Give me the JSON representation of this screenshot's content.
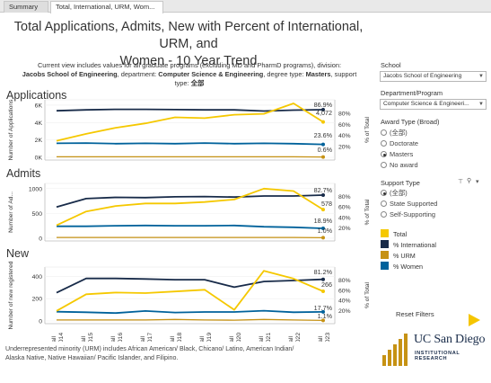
{
  "tabs": [
    {
      "label": "Summary"
    },
    {
      "label": "Total, International, URM, Wom..."
    }
  ],
  "title_line1": "Total Applications, Admits, New with Percent of International, URM, and",
  "title_line2": "Women - 10 Year Trend",
  "description": {
    "line1": "Current view includes values for all graduate programs (excluding MD and PharmD programs), division:",
    "division": "Jacobs School of Engineering",
    "dept_prefix": ", department: ",
    "department": "Computer Science & Engineering",
    "degree_prefix": ", degree type: ",
    "degree": "Masters",
    "support_prefix": ", support",
    "line3_prefix": "type: ",
    "support": "全部"
  },
  "filters": {
    "school_label": "School",
    "school_value": "Jacobs School of Engineering",
    "dept_label": "Department/Program",
    "dept_value": "Computer Science & Engineeri...",
    "award_label": "Award Type (Broad)",
    "award_options": [
      "(全部)",
      "Doctorate",
      "Masters",
      "No award"
    ],
    "award_selected": 2,
    "support_label": "Support Type",
    "support_options": [
      "(全部)",
      "State Supported",
      "Self-Supporting"
    ],
    "support_selected": 0
  },
  "legend": [
    {
      "label": "Total",
      "color": "#f5c800"
    },
    {
      "label": "% International",
      "color": "#182b49"
    },
    {
      "label": "% URM",
      "color": "#c69214"
    },
    {
      "label": "% Women",
      "color": "#00629b"
    }
  ],
  "reset_label": "Reset Filters",
  "footnote": "Underrepresented minority (URM) includes African American/ Black, Chicano/ Latino, American Indian/ Alaska Native, Native Hawaiian/ Pacific Islander, and Filipino.",
  "logo": {
    "line1": "UC San Diego",
    "line2": "INSTITUTIONAL RESEARCH"
  },
  "chart_data": [
    {
      "type": "line",
      "section": "Applications",
      "ylabel": "Number of Applications",
      "y2label": "% of Total",
      "left_ticks": [
        "6K",
        "4K",
        "2K",
        "0K"
      ],
      "left_tick_values": [
        6000,
        4000,
        2000,
        0
      ],
      "ylim": [
        0,
        6300
      ],
      "right_ticks": [
        "80%",
        "60%",
        "40%",
        "20%"
      ],
      "right_tick_values": [
        80,
        60,
        40,
        20
      ],
      "y2lim": [
        0,
        100
      ],
      "x": [
        "Fall 2014",
        "Fall 2015",
        "Fall 2016",
        "Fall 2017",
        "Fall 2018",
        "Fall 2019",
        "Fall 2020",
        "Fall 2021",
        "Fall 2022",
        "Fall 2023"
      ],
      "series": [
        {
          "name": "Total",
          "axis": "left",
          "values": [
            1900,
            2700,
            3400,
            3900,
            4600,
            4500,
            4900,
            5000,
            6200,
            4072
          ]
        },
        {
          "name": "% International",
          "axis": "right",
          "values": [
            85.0,
            86.5,
            87.5,
            87.5,
            87.0,
            86.5,
            86.5,
            84.5,
            86.0,
            86.9
          ]
        },
        {
          "name": "% URM",
          "axis": "right",
          "values": [
            1.0,
            1.0,
            1.0,
            1.0,
            1.0,
            1.0,
            1.0,
            1.0,
            1.0,
            0.6
          ]
        },
        {
          "name": "% Women",
          "axis": "right",
          "values": [
            25.5,
            26.0,
            25.0,
            25.5,
            25.0,
            26.0,
            25.0,
            25.5,
            25.0,
            23.6
          ]
        }
      ],
      "end_labels": [
        "86.9%",
        "4,072",
        "23.6%",
        "0.6%"
      ]
    },
    {
      "type": "line",
      "section": "Admits",
      "ylabel": "Number of Ad...",
      "y2label": "% of Total",
      "left_ticks": [
        "1000",
        "500",
        "0"
      ],
      "left_tick_values": [
        1000,
        500,
        0
      ],
      "ylim": [
        0,
        1050
      ],
      "right_ticks": [
        "80%",
        "60%",
        "40%",
        "20%"
      ],
      "right_tick_values": [
        80,
        60,
        40,
        20
      ],
      "y2lim": [
        0,
        100
      ],
      "x": [
        "Fall 2014",
        "Fall 2015",
        "Fall 2016",
        "Fall 2017",
        "Fall 2018",
        "Fall 2019",
        "Fall 2020",
        "Fall 2021",
        "Fall 2022",
        "Fall 2023"
      ],
      "series": [
        {
          "name": "Total",
          "axis": "left",
          "values": [
            260,
            540,
            650,
            700,
            700,
            730,
            780,
            1000,
            950,
            578
          ]
        },
        {
          "name": "% International",
          "axis": "right",
          "values": [
            60.0,
            76.0,
            78.5,
            78.0,
            79.5,
            80.0,
            79.0,
            81.0,
            81.0,
            82.7
          ]
        },
        {
          "name": "% URM",
          "axis": "right",
          "values": [
            1.5,
            1.5,
            1.5,
            1.5,
            1.5,
            1.5,
            1.5,
            1.5,
            1.5,
            1.0
          ]
        },
        {
          "name": "% Women",
          "axis": "right",
          "values": [
            23.0,
            23.0,
            24.0,
            24.5,
            24.0,
            24.0,
            24.5,
            22.0,
            21.0,
            18.9
          ]
        }
      ],
      "end_labels": [
        "82.7%",
        "578",
        "18.9%",
        "1.0%"
      ]
    },
    {
      "type": "line",
      "section": "New",
      "ylabel": "Number of new registered",
      "y2label": "% of Total",
      "left_ticks": [
        "400",
        "200",
        "0"
      ],
      "left_tick_values": [
        400,
        200,
        0
      ],
      "ylim": [
        0,
        460
      ],
      "right_ticks": [
        "80%",
        "60%",
        "40%",
        "20%"
      ],
      "right_tick_values": [
        80,
        60,
        40,
        20
      ],
      "y2lim": [
        0,
        100
      ],
      "x": [
        "Fall 2014",
        "Fall 2015",
        "Fall 2016",
        "Fall 2017",
        "Fall 2018",
        "Fall 2019",
        "Fall 2020",
        "Fall 2021",
        "Fall 2022",
        "Fall 2023"
      ],
      "series": [
        {
          "name": "Total",
          "axis": "left",
          "values": [
            90,
            240,
            255,
            250,
            265,
            280,
            100,
            450,
            380,
            266
          ]
        },
        {
          "name": "% International",
          "axis": "right",
          "values": [
            55.0,
            83.0,
            83.0,
            82.0,
            80.5,
            80.5,
            66.0,
            77.0,
            79.0,
            81.2
          ]
        },
        {
          "name": "% URM",
          "axis": "right",
          "values": [
            2.0,
            2.0,
            2.0,
            2.0,
            3.0,
            2.0,
            1.5,
            3.0,
            2.0,
            1.1
          ]
        },
        {
          "name": "% Women",
          "axis": "right",
          "values": [
            18.0,
            17.0,
            15.5,
            19.5,
            16.5,
            17.5,
            17.5,
            20.0,
            17.0,
            17.7
          ]
        }
      ],
      "end_labels": [
        "81.2%",
        "266",
        "17.7%",
        "1.1%"
      ]
    }
  ]
}
